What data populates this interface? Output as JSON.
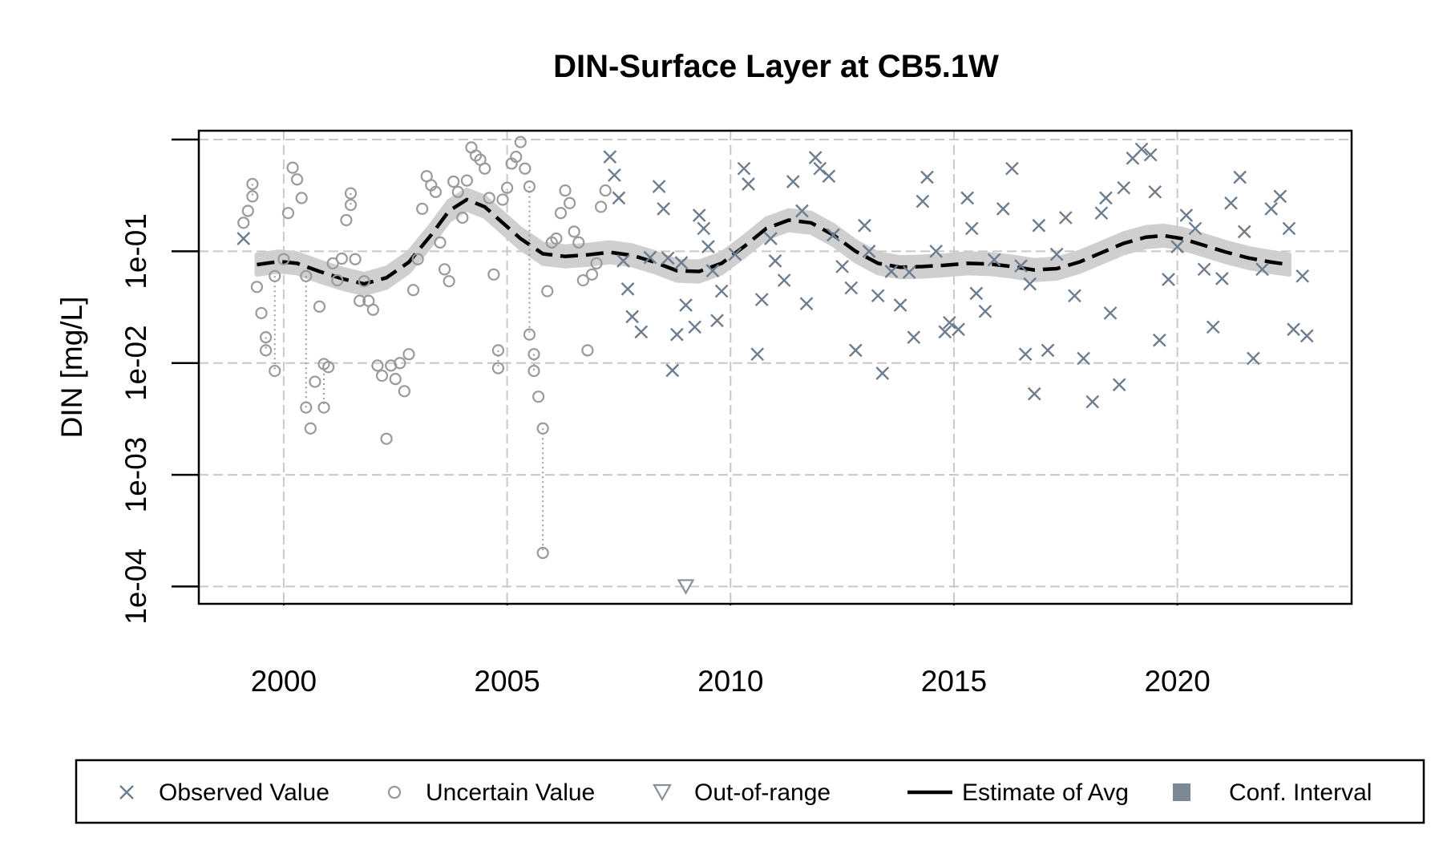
{
  "chart_data": {
    "type": "scatter",
    "title": "DIN-Surface Layer at CB5.1W",
    "xlabel": "",
    "ylabel": "DIN [mg/L]",
    "y_scale": "log10",
    "xlim": [
      1998.1,
      2023.9
    ],
    "ylim": [
      7e-05,
      1.2
    ],
    "x_ticks": [
      2000,
      2005,
      2010,
      2015,
      2020
    ],
    "x_tick_labels": [
      "2000",
      "2005",
      "2010",
      "2015",
      "2020"
    ],
    "y_ticks": [
      0.0001,
      0.001,
      0.01,
      0.1,
      1
    ],
    "y_tick_labels": [
      "1e-04",
      "1e-03",
      "1e-02",
      "1e-01",
      ""
    ],
    "grid": true,
    "legend_position": "bottom",
    "colors": {
      "observed": "#6e7d8e",
      "uncertain": "#9a9a9a",
      "out_of_range": "#8a8f96",
      "estimate": "#000000",
      "conf_interval": "#cfcfcf",
      "conf_interval_legend": "#7c8896",
      "grid": "#c8c8c8"
    },
    "legend": [
      {
        "label": "Observed Value",
        "symbol": "x-icon"
      },
      {
        "label": "Uncertain Value",
        "symbol": "circle-icon"
      },
      {
        "label": "Out-of-range",
        "symbol": "triangle-down-icon"
      },
      {
        "label": "Estimate of Avg",
        "symbol": "dashed-line-icon"
      },
      {
        "label": "Conf. Interval",
        "symbol": "square-icon"
      }
    ],
    "series": [
      {
        "name": "Estimate of Avg",
        "type": "line",
        "ci_factor": 1.22,
        "points": [
          [
            1999.4,
            0.076
          ],
          [
            1999.9,
            0.081
          ],
          [
            2000.3,
            0.078
          ],
          [
            2000.8,
            0.066
          ],
          [
            2001.3,
            0.057
          ],
          [
            2001.8,
            0.051
          ],
          [
            2002.3,
            0.058
          ],
          [
            2002.8,
            0.08
          ],
          [
            2003.3,
            0.14
          ],
          [
            2003.7,
            0.23
          ],
          [
            2004.1,
            0.29
          ],
          [
            2004.5,
            0.25
          ],
          [
            2004.9,
            0.18
          ],
          [
            2005.3,
            0.13
          ],
          [
            2005.8,
            0.095
          ],
          [
            2006.3,
            0.09
          ],
          [
            2006.8,
            0.093
          ],
          [
            2007.3,
            0.098
          ],
          [
            2007.8,
            0.092
          ],
          [
            2008.3,
            0.08
          ],
          [
            2008.8,
            0.067
          ],
          [
            2009.3,
            0.066
          ],
          [
            2009.8,
            0.078
          ],
          [
            2010.3,
            0.11
          ],
          [
            2010.8,
            0.16
          ],
          [
            2011.3,
            0.19
          ],
          [
            2011.8,
            0.18
          ],
          [
            2012.3,
            0.14
          ],
          [
            2012.8,
            0.1
          ],
          [
            2013.3,
            0.078
          ],
          [
            2013.8,
            0.072
          ],
          [
            2014.3,
            0.073
          ],
          [
            2014.8,
            0.075
          ],
          [
            2015.3,
            0.078
          ],
          [
            2015.8,
            0.077
          ],
          [
            2016.3,
            0.073
          ],
          [
            2016.8,
            0.068
          ],
          [
            2017.3,
            0.07
          ],
          [
            2017.8,
            0.08
          ],
          [
            2018.3,
            0.097
          ],
          [
            2018.8,
            0.118
          ],
          [
            2019.3,
            0.134
          ],
          [
            2019.7,
            0.138
          ],
          [
            2020.1,
            0.13
          ],
          [
            2020.6,
            0.113
          ],
          [
            2021.1,
            0.098
          ],
          [
            2021.6,
            0.087
          ],
          [
            2022.1,
            0.08
          ],
          [
            2022.5,
            0.076
          ]
        ]
      },
      {
        "name": "Uncertain Value",
        "type": "scatter",
        "points": [
          [
            1999.1,
            0.18
          ],
          [
            1999.2,
            0.23
          ],
          [
            1999.3,
            0.4
          ],
          [
            1999.3,
            0.31
          ],
          [
            1999.4,
            0.048
          ],
          [
            1999.5,
            0.028
          ],
          [
            1999.6,
            0.017
          ],
          [
            1999.6,
            0.013
          ],
          [
            1999.8,
            0.0085
          ],
          [
            1999.8,
            0.06
          ],
          [
            2000.0,
            0.085
          ],
          [
            2000.1,
            0.22
          ],
          [
            2000.2,
            0.56
          ],
          [
            2000.3,
            0.44
          ],
          [
            2000.4,
            0.3
          ],
          [
            2000.5,
            0.06
          ],
          [
            2000.5,
            0.004
          ],
          [
            2000.6,
            0.0026
          ],
          [
            2000.7,
            0.0068
          ],
          [
            2000.8,
            0.032
          ],
          [
            2000.9,
            0.0098
          ],
          [
            2000.9,
            0.004
          ],
          [
            2001.0,
            0.0092
          ],
          [
            2001.1,
            0.078
          ],
          [
            2001.2,
            0.055
          ],
          [
            2001.3,
            0.086
          ],
          [
            2001.4,
            0.19
          ],
          [
            2001.5,
            0.33
          ],
          [
            2001.5,
            0.26
          ],
          [
            2001.6,
            0.085
          ],
          [
            2001.7,
            0.036
          ],
          [
            2001.8,
            0.054
          ],
          [
            2001.9,
            0.036
          ],
          [
            2002.0,
            0.03
          ],
          [
            2002.1,
            0.0095
          ],
          [
            2002.2,
            0.0077
          ],
          [
            2002.3,
            0.0021
          ],
          [
            2002.4,
            0.0095
          ],
          [
            2002.5,
            0.0072
          ],
          [
            2002.6,
            0.01
          ],
          [
            2002.7,
            0.0056
          ],
          [
            2002.8,
            0.012
          ],
          [
            2002.9,
            0.045
          ],
          [
            2003.0,
            0.085
          ],
          [
            2003.1,
            0.24
          ],
          [
            2003.2,
            0.47
          ],
          [
            2003.3,
            0.39
          ],
          [
            2003.4,
            0.34
          ],
          [
            2003.5,
            0.12
          ],
          [
            2003.6,
            0.069
          ],
          [
            2003.7,
            0.054
          ],
          [
            2003.8,
            0.42
          ],
          [
            2003.9,
            0.34
          ],
          [
            2004.0,
            0.2
          ],
          [
            2004.1,
            0.43
          ],
          [
            2004.2,
            0.85
          ],
          [
            2004.3,
            0.72
          ],
          [
            2004.4,
            0.66
          ],
          [
            2004.5,
            0.55
          ],
          [
            2004.6,
            0.3
          ],
          [
            2004.7,
            0.062
          ],
          [
            2004.8,
            0.009
          ],
          [
            2004.8,
            0.013
          ],
          [
            2004.9,
            0.29
          ],
          [
            2005.0,
            0.37
          ],
          [
            2005.1,
            0.61
          ],
          [
            2005.2,
            0.7
          ],
          [
            2005.3,
            0.95
          ],
          [
            2005.4,
            0.55
          ],
          [
            2005.5,
            0.38
          ],
          [
            2005.5,
            0.018
          ],
          [
            2005.6,
            0.012
          ],
          [
            2005.6,
            0.0085
          ],
          [
            2005.7,
            0.005
          ],
          [
            2005.8,
            0.0026
          ],
          [
            2005.8,
            0.0002
          ],
          [
            2005.9,
            0.044
          ],
          [
            2006.0,
            0.12
          ],
          [
            2006.1,
            0.13
          ],
          [
            2006.2,
            0.22
          ],
          [
            2006.3,
            0.35
          ],
          [
            2006.4,
            0.27
          ],
          [
            2006.5,
            0.15
          ],
          [
            2006.6,
            0.12
          ],
          [
            2006.7,
            0.055
          ],
          [
            2006.8,
            0.013
          ],
          [
            2006.9,
            0.062
          ],
          [
            2007.0,
            0.078
          ],
          [
            2007.1,
            0.25
          ],
          [
            2007.2,
            0.35
          ]
        ]
      },
      {
        "name": "Observed Value",
        "type": "scatter",
        "points": [
          [
            1999.1,
            0.13
          ],
          [
            2007.3,
            0.7
          ],
          [
            2007.4,
            0.48
          ],
          [
            2007.5,
            0.3
          ],
          [
            2007.6,
            0.082
          ],
          [
            2007.7,
            0.046
          ],
          [
            2007.8,
            0.026
          ],
          [
            2008.0,
            0.019
          ],
          [
            2008.2,
            0.088
          ],
          [
            2008.4,
            0.38
          ],
          [
            2008.5,
            0.24
          ],
          [
            2008.6,
            0.087
          ],
          [
            2008.7,
            0.0086
          ],
          [
            2008.8,
            0.018
          ],
          [
            2008.9,
            0.079
          ],
          [
            2009.0,
            0.033
          ],
          [
            2009.2,
            0.021
          ],
          [
            2009.3,
            0.21
          ],
          [
            2009.4,
            0.16
          ],
          [
            2009.5,
            0.11
          ],
          [
            2009.6,
            0.067
          ],
          [
            2009.7,
            0.024
          ],
          [
            2009.8,
            0.044
          ],
          [
            2010.1,
            0.094
          ],
          [
            2010.3,
            0.55
          ],
          [
            2010.4,
            0.4
          ],
          [
            2010.6,
            0.012
          ],
          [
            2010.7,
            0.037
          ],
          [
            2010.9,
            0.13
          ],
          [
            2011.0,
            0.082
          ],
          [
            2011.2,
            0.055
          ],
          [
            2011.4,
            0.42
          ],
          [
            2011.6,
            0.23
          ],
          [
            2011.7,
            0.034
          ],
          [
            2011.9,
            0.69
          ],
          [
            2012.0,
            0.55
          ],
          [
            2012.2,
            0.47
          ],
          [
            2012.3,
            0.14
          ],
          [
            2012.5,
            0.073
          ],
          [
            2012.7,
            0.047
          ],
          [
            2012.8,
            0.013
          ],
          [
            2013.0,
            0.17
          ],
          [
            2013.1,
            0.1
          ],
          [
            2013.3,
            0.04
          ],
          [
            2013.4,
            0.0081
          ],
          [
            2013.6,
            0.066
          ],
          [
            2013.8,
            0.033
          ],
          [
            2014.0,
            0.065
          ],
          [
            2014.1,
            0.017
          ],
          [
            2014.3,
            0.28
          ],
          [
            2014.4,
            0.46
          ],
          [
            2014.6,
            0.1
          ],
          [
            2014.8,
            0.019
          ],
          [
            2014.9,
            0.023
          ],
          [
            2015.1,
            0.02
          ],
          [
            2015.3,
            0.3
          ],
          [
            2015.4,
            0.16
          ],
          [
            2015.5,
            0.042
          ],
          [
            2015.7,
            0.029
          ],
          [
            2015.9,
            0.084
          ],
          [
            2016.1,
            0.24
          ],
          [
            2016.3,
            0.55
          ],
          [
            2016.5,
            0.074
          ],
          [
            2016.6,
            0.012
          ],
          [
            2016.7,
            0.051
          ],
          [
            2016.8,
            0.0053
          ],
          [
            2016.9,
            0.17
          ],
          [
            2017.1,
            0.013
          ],
          [
            2017.3,
            0.094
          ],
          [
            2017.5,
            0.2
          ],
          [
            2017.7,
            0.04
          ],
          [
            2017.9,
            0.011
          ],
          [
            2018.1,
            0.0045
          ],
          [
            2018.3,
            0.22
          ],
          [
            2018.4,
            0.3
          ],
          [
            2018.5,
            0.028
          ],
          [
            2018.7,
            0.0064
          ],
          [
            2018.8,
            0.37
          ],
          [
            2019.0,
            0.68
          ],
          [
            2019.2,
            0.82
          ],
          [
            2019.4,
            0.73
          ],
          [
            2019.5,
            0.34
          ],
          [
            2019.6,
            0.016
          ],
          [
            2019.8,
            0.056
          ],
          [
            2020.0,
            0.11
          ],
          [
            2020.2,
            0.21
          ],
          [
            2020.4,
            0.16
          ],
          [
            2020.6,
            0.069
          ],
          [
            2020.8,
            0.021
          ],
          [
            2021.0,
            0.057
          ],
          [
            2021.2,
            0.27
          ],
          [
            2021.4,
            0.46
          ],
          [
            2021.5,
            0.15
          ],
          [
            2021.7,
            0.011
          ],
          [
            2021.9,
            0.069
          ],
          [
            2022.1,
            0.24
          ],
          [
            2022.3,
            0.31
          ],
          [
            2022.5,
            0.16
          ],
          [
            2022.6,
            0.02
          ],
          [
            2022.8,
            0.06
          ],
          [
            2022.9,
            0.0175
          ]
        ]
      },
      {
        "name": "Out-of-range",
        "type": "scatter",
        "points": [
          [
            2009.0,
            0.0001
          ]
        ]
      }
    ]
  }
}
